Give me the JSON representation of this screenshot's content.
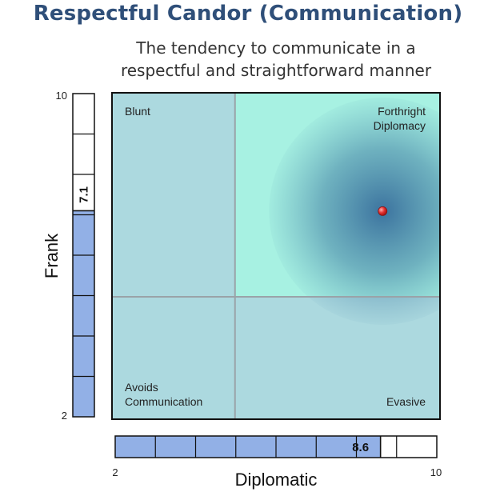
{
  "header": {
    "title": "Respectful Candor (Communication)",
    "subtitle_line1": "The tendency to communicate in a",
    "subtitle_line2": "respectful and straightforward manner"
  },
  "chart_data": {
    "type": "scatter",
    "xlabel": "Diplomatic",
    "ylabel": "Frank",
    "xlim": [
      2,
      10
    ],
    "ylim": [
      2,
      10
    ],
    "x_ticks": [
      "2",
      "10"
    ],
    "y_ticks": [
      "2",
      "10"
    ],
    "point": {
      "x": 8.6,
      "y": 7.1
    },
    "x_score_label": "8.6",
    "y_score_label": "7.1",
    "quadrant_split": {
      "x": 5,
      "y": 5
    },
    "quadrants": {
      "top_left": "Blunt",
      "top_right_line1": "Forthright",
      "top_right_line2": "Diplomacy",
      "bottom_left_line1": "Avoids",
      "bottom_left_line2": "Communication",
      "bottom_right": "Evasive"
    },
    "grid": false,
    "colors": {
      "quadrant_base": "#acd9df",
      "quadrant_highlight": "#a7f1e2",
      "glow": "#1e508c",
      "bar_fill": "#92b0e6",
      "point": "#e53030"
    }
  }
}
